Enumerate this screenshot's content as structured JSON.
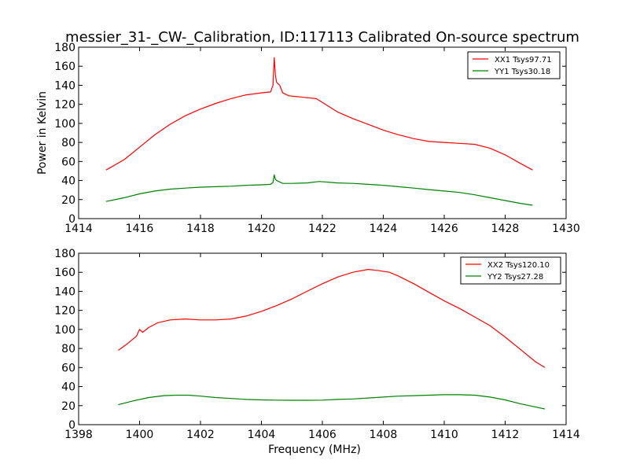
{
  "figure": {
    "title": "messier_31-_CW-_Calibration, ID:117113 Calibrated On-source spectrum"
  },
  "chart_data": [
    {
      "type": "line",
      "xlabel": "",
      "ylabel": "Power in Kelvin",
      "xlim": [
        1414,
        1430
      ],
      "ylim": [
        0,
        180
      ],
      "xticks": [
        1414,
        1416,
        1418,
        1420,
        1422,
        1424,
        1426,
        1428,
        1430
      ],
      "yticks": [
        0,
        20,
        40,
        60,
        80,
        100,
        120,
        140,
        160,
        180
      ],
      "legend_position": "top-right",
      "grid": false,
      "series": [
        {
          "name": "XX1 Tsys97.71",
          "color": "#ff0000",
          "x": [
            1414.9,
            1415.5,
            1416.0,
            1416.5,
            1417.0,
            1417.5,
            1418.0,
            1418.5,
            1419.0,
            1419.5,
            1420.0,
            1420.3,
            1420.38,
            1420.42,
            1420.46,
            1420.5,
            1420.6,
            1420.7,
            1420.9,
            1421.2,
            1421.5,
            1421.8,
            1422.0,
            1422.5,
            1423.0,
            1423.5,
            1424.0,
            1424.5,
            1425.0,
            1425.5,
            1426.0,
            1426.5,
            1427.0,
            1427.5,
            1428.0,
            1428.5,
            1428.9
          ],
          "y": [
            51,
            62,
            75,
            88,
            99,
            108,
            115,
            121,
            126,
            130,
            132,
            133,
            140,
            169,
            150,
            143,
            140,
            132,
            129,
            128,
            127,
            126,
            122,
            112,
            105,
            99,
            93,
            88,
            84,
            81,
            80,
            79,
            78,
            74,
            67,
            58,
            51
          ]
        },
        {
          "name": "YY1 Tsys30.18",
          "color": "#008000",
          "x": [
            1414.9,
            1415.5,
            1416.0,
            1416.5,
            1417.0,
            1417.5,
            1418.0,
            1418.5,
            1419.0,
            1419.5,
            1420.0,
            1420.3,
            1420.38,
            1420.42,
            1420.46,
            1420.5,
            1420.7,
            1421.0,
            1421.5,
            1421.9,
            1422.5,
            1423.0,
            1423.5,
            1424.0,
            1424.5,
            1425.0,
            1425.5,
            1426.0,
            1426.5,
            1427.0,
            1427.5,
            1428.0,
            1428.5,
            1428.9
          ],
          "y": [
            18,
            22,
            26,
            29,
            31,
            32,
            33,
            33.5,
            34,
            35,
            35.5,
            36,
            38,
            46,
            41,
            40,
            37,
            37,
            37.5,
            39,
            37.5,
            37,
            36,
            35,
            33.5,
            32,
            30.5,
            29,
            27.5,
            25,
            22,
            19,
            16,
            14
          ]
        }
      ]
    },
    {
      "type": "line",
      "xlabel": "Frequency (MHz)",
      "ylabel": "",
      "xlim": [
        1398,
        1414
      ],
      "ylim": [
        0,
        180
      ],
      "xticks": [
        1398,
        1400,
        1402,
        1404,
        1406,
        1408,
        1410,
        1412,
        1414
      ],
      "yticks": [
        0,
        20,
        40,
        60,
        80,
        100,
        120,
        140,
        160,
        180
      ],
      "legend_position": "top-right",
      "grid": false,
      "series": [
        {
          "name": "XX2 Tsys120.10",
          "color": "#ff0000",
          "x": [
            1399.3,
            1399.6,
            1399.9,
            1400.0,
            1400.1,
            1400.3,
            1400.6,
            1401.0,
            1401.5,
            1402.0,
            1402.5,
            1403.0,
            1403.5,
            1404.0,
            1404.5,
            1405.0,
            1405.5,
            1406.0,
            1406.5,
            1407.0,
            1407.5,
            1407.8,
            1408.2,
            1408.5,
            1409.0,
            1409.5,
            1410.0,
            1410.5,
            1411.0,
            1411.5,
            1412.0,
            1412.5,
            1413.0,
            1413.3
          ],
          "y": [
            78,
            85,
            93,
            100,
            97,
            102,
            107,
            110,
            111,
            110,
            110,
            111,
            114,
            119,
            125,
            132,
            140,
            148,
            155,
            160,
            163,
            162,
            160,
            156,
            148,
            139,
            130,
            122,
            113,
            104,
            92,
            79,
            66,
            60
          ]
        },
        {
          "name": "YY2 Tsys27.28",
          "color": "#008000",
          "x": [
            1399.3,
            1399.8,
            1400.3,
            1400.8,
            1401.2,
            1401.6,
            1402.0,
            1402.5,
            1403.0,
            1403.5,
            1404.0,
            1404.5,
            1405.0,
            1405.5,
            1406.0,
            1406.5,
            1407.0,
            1407.5,
            1408.0,
            1408.5,
            1409.0,
            1409.5,
            1410.0,
            1410.5,
            1411.0,
            1411.5,
            1412.0,
            1412.5,
            1413.0,
            1413.3
          ],
          "y": [
            21,
            25,
            28.5,
            30.5,
            31,
            31,
            30,
            28.5,
            27.5,
            26.5,
            26,
            25.8,
            25.6,
            25.6,
            25.8,
            26.5,
            27,
            28,
            29,
            30,
            30.5,
            31,
            31.5,
            31.5,
            31,
            29,
            26,
            22,
            18.5,
            16.5
          ]
        }
      ]
    }
  ]
}
